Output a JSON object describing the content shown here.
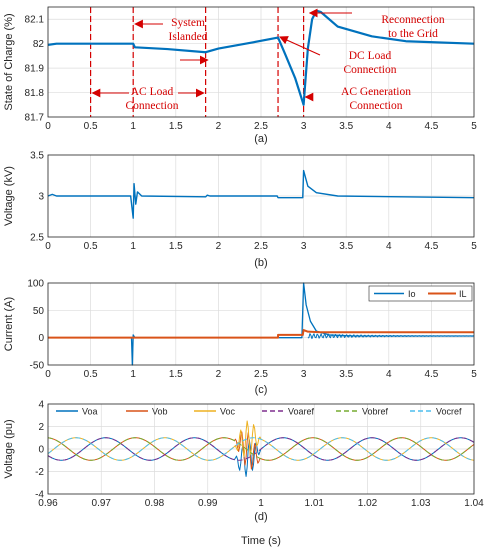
{
  "chart_data": [
    {
      "type": "line",
      "sublabel": "(a)",
      "ylabel": "State of Charge (%)",
      "xlim": [
        0,
        5
      ],
      "ylim": [
        81.7,
        82.15
      ],
      "xticks": [
        "0",
        "0.5",
        "1",
        "1.5",
        "2",
        "2.5",
        "3",
        "3.5",
        "4",
        "4.5",
        "5"
      ],
      "yticks": [
        "81.7",
        "81.8",
        "81.9",
        "82",
        "82.1"
      ],
      "grid": true,
      "colors": {
        "line": "#0072bd",
        "annotation": "#d40000"
      },
      "series": [
        {
          "values": [
            [
              0,
              81.995
            ],
            [
              0.1,
              82.0
            ],
            [
              0.5,
              82.0
            ],
            [
              1.0,
              82.0
            ],
            [
              1.02,
              81.985
            ],
            [
              1.4,
              81.978
            ],
            [
              1.85,
              81.965
            ],
            [
              2.0,
              81.98
            ],
            [
              2.4,
              82.005
            ],
            [
              2.7,
              82.025
            ],
            [
              2.78,
              81.96
            ],
            [
              2.9,
              81.86
            ],
            [
              3.0,
              81.75
            ],
            [
              3.05,
              81.98
            ],
            [
              3.1,
              82.1
            ],
            [
              3.15,
              82.135
            ],
            [
              3.2,
              82.13
            ],
            [
              3.4,
              82.07
            ],
            [
              3.8,
              82.03
            ],
            [
              4.2,
              82.01
            ],
            [
              5.0,
              82.0
            ]
          ]
        }
      ],
      "event_lines": [
        0.5,
        1.0,
        1.85,
        2.7,
        3.0
      ],
      "annotations": [
        "System Islanded",
        "AC Load Connection",
        "DC Load Connection",
        "AC Generation Connection",
        "Reconnection to the Grid"
      ]
    },
    {
      "type": "line",
      "sublabel": "(b)",
      "ylabel": "Voltage (kV)",
      "xlim": [
        0,
        5
      ],
      "ylim": [
        2.5,
        3.5
      ],
      "xticks": [
        "0",
        "0.5",
        "1",
        "1.5",
        "2",
        "2.5",
        "3",
        "3.5",
        "4",
        "4.5",
        "5"
      ],
      "yticks": [
        "2.5",
        "3",
        "3.5"
      ],
      "grid": true,
      "series": [
        {
          "values": [
            [
              0,
              3.0
            ],
            [
              0.05,
              3.02
            ],
            [
              0.1,
              3.0
            ],
            [
              0.97,
              3.0
            ],
            [
              1.0,
              2.73
            ],
            [
              1.01,
              3.15
            ],
            [
              1.03,
              2.9
            ],
            [
              1.05,
              3.05
            ],
            [
              1.1,
              3.0
            ],
            [
              1.85,
              2.99
            ],
            [
              1.87,
              3.01
            ],
            [
              1.9,
              3.0
            ],
            [
              2.69,
              3.0
            ],
            [
              2.7,
              2.98
            ],
            [
              2.99,
              2.98
            ],
            [
              3.0,
              3.31
            ],
            [
              3.05,
              3.12
            ],
            [
              3.15,
              3.04
            ],
            [
              3.4,
              3.0
            ],
            [
              5.0,
              2.98
            ]
          ]
        }
      ]
    },
    {
      "type": "line",
      "sublabel": "(c)",
      "ylabel": "Current (A)",
      "xlim": [
        0,
        5
      ],
      "ylim": [
        -50,
        100
      ],
      "xticks": [
        "0",
        "0.5",
        "1",
        "1.5",
        "2",
        "2.5",
        "3",
        "3.5",
        "4",
        "4.5",
        "5"
      ],
      "yticks": [
        "-50",
        "0",
        "50",
        "100"
      ],
      "grid": true,
      "series": [
        {
          "name": "Io",
          "color": "#0072bd",
          "values": [
            [
              0,
              0
            ],
            [
              0.98,
              0
            ],
            [
              0.99,
              -50
            ],
            [
              1.0,
              5
            ],
            [
              1.02,
              0
            ],
            [
              2.98,
              0
            ],
            [
              3.0,
              100
            ],
            [
              3.03,
              60
            ],
            [
              3.08,
              30
            ],
            [
              3.15,
              12
            ],
            [
              3.3,
              5
            ],
            [
              3.6,
              3
            ],
            [
              5.0,
              3
            ]
          ]
        },
        {
          "name": "IL",
          "color": "#d95319",
          "values": [
            [
              0,
              0
            ],
            [
              2.7,
              0
            ],
            [
              2.7,
              5
            ],
            [
              2.99,
              5
            ],
            [
              3.0,
              14
            ],
            [
              3.05,
              11
            ],
            [
              3.2,
              10
            ],
            [
              5.0,
              10
            ]
          ]
        }
      ]
    },
    {
      "type": "line",
      "sublabel": "(d)",
      "ylabel": "Voltage (pu)",
      "xlabel": "Time (s)",
      "xlim": [
        0.96,
        1.04
      ],
      "ylim": [
        -4,
        4
      ],
      "xticks": [
        "0.96",
        "0.97",
        "0.98",
        "0.99",
        "1",
        "1.01",
        "1.02",
        "1.03",
        "1.04"
      ],
      "yticks": [
        "-4",
        "-2",
        "0",
        "2",
        "4"
      ],
      "grid": true,
      "frequency_hz": 60,
      "amplitude": 1,
      "series": [
        {
          "name": "Voa",
          "color": "#0072bd",
          "phase_deg": 0
        },
        {
          "name": "Vob",
          "color": "#d95319",
          "phase_deg": -120
        },
        {
          "name": "Voc",
          "color": "#edb120",
          "phase_deg": 120
        },
        {
          "name": "Voaref",
          "color": "#7e2f8e",
          "phase_deg": 0
        },
        {
          "name": "Vobref",
          "color": "#77ac30",
          "phase_deg": -120
        },
        {
          "name": "Vocref",
          "color": "#4dbeee",
          "phase_deg": 120
        }
      ],
      "disturbance_window": [
        0.995,
        1.0
      ]
    }
  ]
}
